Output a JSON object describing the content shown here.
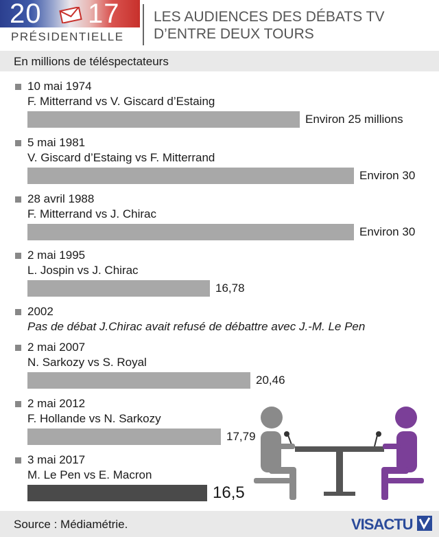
{
  "header": {
    "year_left": "20",
    "year_right": "17",
    "logo_subtitle": "PRÉSIDENTIELLE",
    "title": "LES AUDIENCES DES DÉBATS TV D’ENTRE DEUX TOURS",
    "colors": {
      "blue": "#2b3f8f",
      "red": "#c7302b"
    }
  },
  "subtitle": "En millions de téléspectateurs",
  "chart_data": {
    "type": "bar",
    "orientation": "horizontal",
    "title": "LES AUDIENCES DES DÉBATS TV D’ENTRE DEUX TOURS",
    "unit": "En millions de téléspectateurs",
    "xlim": [
      0,
      30
    ],
    "grid": false,
    "entries": [
      {
        "date": "10 mai 1974",
        "matchup": "F. Mitterrand vs V. Giscard d’Estaing",
        "value": 25,
        "label": "Environ 25 millions"
      },
      {
        "date": "5 mai 1981",
        "matchup": "V. Giscard d’Estaing vs F. Mitterrand",
        "value": 30,
        "label": "Environ 30"
      },
      {
        "date": "28 avril 1988",
        "matchup": "F. Mitterrand vs J. Chirac",
        "value": 30,
        "label": "Environ 30"
      },
      {
        "date": "2 mai 1995",
        "matchup": "L. Jospin vs J. Chirac",
        "value": 16.78,
        "label": "16,78"
      },
      {
        "date": "2002",
        "matchup": "Pas de débat J.Chirac avait refusé de débattre avec J.-M. Le Pen",
        "value": null,
        "label": ""
      },
      {
        "date": "2 mai 2007",
        "matchup": "N. Sarkozy vs S. Royal",
        "value": 20.46,
        "label": "20,46"
      },
      {
        "date": "2 mai 2012",
        "matchup": "F. Hollande vs N. Sarkozy",
        "value": 17.79,
        "label": "17,79"
      },
      {
        "date": "3 mai 2017",
        "matchup": "M. Le Pen vs E. Macron",
        "value": 16.5,
        "label": "16,5",
        "highlight": true
      }
    ],
    "colors": {
      "bar": "#a8a8a8",
      "highlight": "#4a4a4a"
    }
  },
  "footer": {
    "source": "Source : Médiamétrie.",
    "brand": "VISACTU",
    "brand_color": "#2a4a9a"
  },
  "illustration": {
    "icon": "debate-table-icon",
    "left_person_color": "#8a8a8a",
    "right_person_color": "#7b3f98",
    "table_color": "#555555"
  }
}
